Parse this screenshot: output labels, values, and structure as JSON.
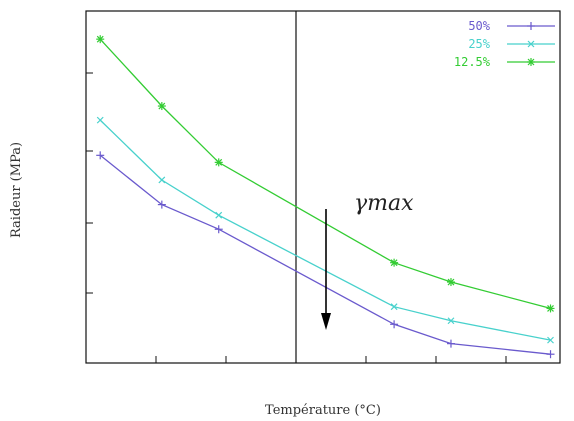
{
  "chart_data": {
    "type": "line",
    "title": "",
    "xlabel": "Température (°C)",
    "ylabel": "Raideur (MPa)",
    "xlim": [
      0,
      10
    ],
    "ylim": [
      0,
      10
    ],
    "grid": false,
    "legend_position": "top-right",
    "series": [
      {
        "name": "50%",
        "color": "#6a5acd",
        "marker": "plus",
        "x": [
          0.3,
          1.6,
          2.8,
          6.5,
          7.7,
          9.8
        ],
        "y": [
          5.9,
          4.5,
          3.8,
          1.1,
          0.55,
          0.25
        ]
      },
      {
        "name": "25%",
        "color": "#48d1cc",
        "marker": "cross",
        "x": [
          0.3,
          1.6,
          2.8,
          6.5,
          7.7,
          9.8
        ],
        "y": [
          6.9,
          5.2,
          4.2,
          1.6,
          1.2,
          0.65
        ]
      },
      {
        "name": "12.5%",
        "color": "#33cc33",
        "marker": "asterisk",
        "x": [
          0.3,
          1.6,
          2.8,
          6.5,
          7.7,
          9.8
        ],
        "y": [
          9.2,
          7.3,
          5.7,
          2.85,
          2.3,
          1.55
        ]
      }
    ],
    "annotations": [
      {
        "text": "γmax",
        "type": "downward-arrow"
      }
    ]
  }
}
